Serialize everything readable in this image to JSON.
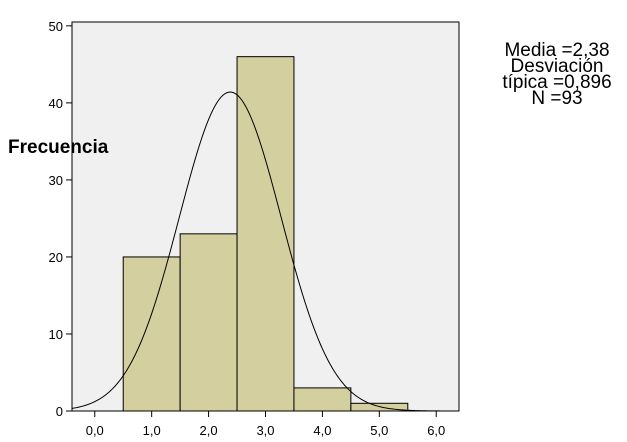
{
  "chart_data": {
    "type": "bar",
    "subtype": "histogram",
    "ylabel": "Frecuencia",
    "xlabel": "",
    "bins": [
      {
        "x0": 0.5,
        "x1": 1.5,
        "count": 20
      },
      {
        "x0": 1.5,
        "x1": 2.5,
        "count": 23
      },
      {
        "x0": 2.5,
        "x1": 3.5,
        "count": 46
      },
      {
        "x0": 3.5,
        "x1": 4.5,
        "count": 3
      },
      {
        "x0": 4.5,
        "x1": 5.5,
        "count": 1
      }
    ],
    "x_ticks": [
      "0,0",
      "1,0",
      "2,0",
      "3,0",
      "4,0",
      "5,0",
      "6,0"
    ],
    "x_tick_values": [
      0,
      1,
      2,
      3,
      4,
      5,
      6
    ],
    "y_ticks": [
      "0",
      "10",
      "20",
      "30",
      "40",
      "50"
    ],
    "y_tick_values": [
      0,
      10,
      20,
      30,
      40,
      50
    ],
    "xlim": [
      -0.4,
      6.4
    ],
    "ylim": [
      0,
      50.5
    ],
    "normal_curve": {
      "mean": 2.38,
      "sd": 0.896,
      "n": 93,
      "bin_width": 1
    },
    "stats": {
      "media": "Media =2,38",
      "desviacion": "Desviación",
      "tipica": "típica =0,896",
      "n": "N =93"
    },
    "grid": false,
    "colors": {
      "plot_background": "#f0f0f0",
      "bar_fill": "#d4cf9e",
      "bar_stroke": "#000000",
      "curve": "#000000"
    }
  }
}
